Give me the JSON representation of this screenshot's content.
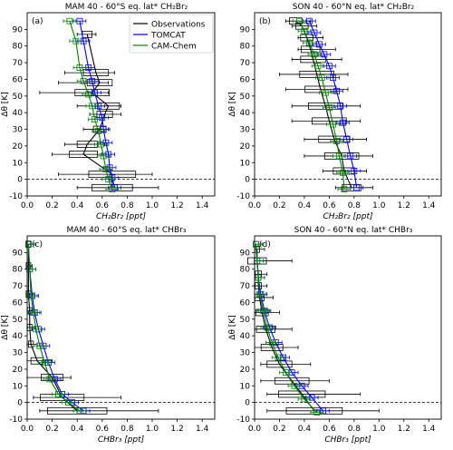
{
  "colors": {
    "observations": "#000000",
    "tomcat": "#0000ff",
    "camchem": "#008000"
  },
  "legend": [
    {
      "label": "Observations",
      "color": "#000000"
    },
    {
      "label": "TOMCAT",
      "color": "#0000ff"
    },
    {
      "label": "CAM-Chem",
      "color": "#008000"
    }
  ],
  "chart_data": [
    {
      "type": "line",
      "panel": "(a)",
      "title": "MAM 40 - 60°S eq. lat* CH₂Br₂",
      "xlabel": "CH₂Br₂ [ppt]",
      "ylabel": "Δθ [K]",
      "xlim": [
        0,
        1.5
      ],
      "ylim": [
        -10,
        100
      ],
      "xticks": [
        "0.0",
        "0.2",
        "0.4",
        "0.6",
        "0.8",
        "1.0",
        "1.2",
        "1.4"
      ],
      "yticks": [
        "-10",
        "0",
        "10",
        "20",
        "30",
        "40",
        "50",
        "60",
        "70",
        "80",
        "90"
      ],
      "legend": true,
      "series": [
        {
          "name": "Observations",
          "x": [
            0.68,
            0.68,
            0.45,
            0.48,
            0.58,
            0.62,
            0.65,
            0.52,
            0.58,
            0.55,
            0.48
          ],
          "y": [
            -5,
            3,
            15,
            21,
            30,
            39,
            44,
            52,
            58,
            64,
            87
          ],
          "whisker": [
            [
              0.4,
              1.05
            ],
            [
              0.25,
              1.0
            ],
            [
              0.2,
              0.65
            ],
            [
              0.3,
              0.62
            ],
            [
              0.45,
              0.65
            ],
            [
              0.5,
              0.75
            ],
            [
              0.4,
              0.75
            ],
            [
              0.1,
              0.65
            ],
            [
              0.25,
              0.65
            ],
            [
              0.3,
              0.7
            ],
            [
              0.4,
              0.55
            ]
          ]
        },
        {
          "name": "TOMCAT",
          "x": [
            0.7,
            0.68,
            0.66,
            0.65,
            0.63,
            0.61,
            0.6,
            0.57,
            0.54,
            0.52,
            0.49,
            0.45,
            0.42
          ],
          "y": [
            -5,
            1,
            7,
            15,
            22,
            30,
            37,
            44,
            52,
            59,
            67,
            83,
            95
          ]
        },
        {
          "name": "CAM-Chem",
          "x": [
            0.68,
            0.65,
            0.63,
            0.61,
            0.59,
            0.57,
            0.54,
            0.52,
            0.49,
            0.45,
            0.42,
            0.39,
            0.34
          ],
          "y": [
            -6,
            0,
            6,
            14,
            21,
            29,
            36,
            44,
            51,
            59,
            67,
            83,
            95
          ]
        }
      ]
    },
    {
      "type": "line",
      "panel": "(b)",
      "title": "SON 40 - 60°N eq. lat* CH₂Br₂",
      "xlabel": "CH₂Br₂ [ppt]",
      "ylabel": "Δθ [K]",
      "xlim": [
        0,
        1.5
      ],
      "ylim": [
        -10,
        100
      ],
      "xticks": [
        "0.0",
        "0.2",
        "0.4",
        "0.6",
        "0.8",
        "1.0",
        "1.2",
        "1.4"
      ],
      "yticks": [
        "-10",
        "0",
        "10",
        "20",
        "30",
        "40",
        "50",
        "60",
        "70",
        "80",
        "90"
      ],
      "legend": false,
      "series": [
        {
          "name": "Observations",
          "x": [
            0.78,
            0.72,
            0.7,
            0.64,
            0.6,
            0.57,
            0.53,
            0.5,
            0.47,
            0.45,
            0.42,
            0.38,
            0.33
          ],
          "y": [
            -5,
            5,
            14,
            24,
            35,
            44,
            54,
            63,
            72,
            78,
            85,
            92,
            95
          ],
          "whisker": [
            [
              0.65,
              0.95
            ],
            [
              0.55,
              0.9
            ],
            [
              0.4,
              0.95
            ],
            [
              0.4,
              0.9
            ],
            [
              0.3,
              0.85
            ],
            [
              0.3,
              0.85
            ],
            [
              0.25,
              0.75
            ],
            [
              0.2,
              0.75
            ],
            [
              0.3,
              0.7
            ],
            [
              0.35,
              0.65
            ],
            [
              0.35,
              0.55
            ],
            [
              0.3,
              0.5
            ],
            [
              0.25,
              0.45
            ]
          ]
        },
        {
          "name": "TOMCAT",
          "x": [
            0.82,
            0.8,
            0.77,
            0.74,
            0.71,
            0.69,
            0.66,
            0.63,
            0.6,
            0.56,
            0.52,
            0.48,
            0.44
          ],
          "y": [
            -5,
            5,
            14,
            24,
            34,
            44,
            53,
            61,
            68,
            75,
            81,
            88,
            95
          ]
        },
        {
          "name": "CAM-Chem",
          "x": [
            0.72,
            0.71,
            0.68,
            0.66,
            0.63,
            0.6,
            0.57,
            0.54,
            0.51,
            0.48,
            0.44,
            0.4,
            0.36
          ],
          "y": [
            -6,
            4,
            14,
            23,
            33,
            43,
            52,
            61,
            68,
            75,
            82,
            89,
            95
          ]
        }
      ]
    },
    {
      "type": "line",
      "panel": "(c)",
      "title": "MAM 40 - 60°S eq. lat* CHBr₃",
      "xlabel": "CHBr₃ [ppt]",
      "ylabel": "Δθ [K]",
      "xlim": [
        0,
        1.5
      ],
      "ylim": [
        -10,
        100
      ],
      "xticks": [
        "0.0",
        "0.2",
        "0.4",
        "0.6",
        "0.8",
        "1.0",
        "1.2",
        "1.4"
      ],
      "yticks": [
        "-10",
        "0",
        "10",
        "20",
        "30",
        "40",
        "50",
        "60",
        "70",
        "80",
        "90"
      ],
      "legend": false,
      "series": [
        {
          "name": "Observations",
          "x": [
            0.4,
            0.28,
            0.2,
            0.08,
            0.03,
            0.02,
            0.02,
            0.01,
            0.01,
            0.01
          ],
          "y": [
            -5,
            3,
            15,
            25,
            35,
            45,
            55,
            65,
            82,
            95
          ],
          "whisker": [
            [
              0.1,
              1.05
            ],
            [
              0.05,
              0.75
            ],
            [
              0.0,
              0.35
            ],
            [
              0.0,
              0.2
            ],
            [
              0.0,
              0.08
            ],
            [
              0.0,
              0.06
            ],
            [
              0.0,
              0.05
            ],
            [
              0.0,
              0.05
            ],
            [
              0.0,
              0.04
            ],
            [
              0.0,
              0.03
            ]
          ]
        },
        {
          "name": "TOMCAT",
          "x": [
            0.45,
            0.36,
            0.28,
            0.22,
            0.17,
            0.13,
            0.09,
            0.06,
            0.04,
            0.02,
            0.01
          ],
          "y": [
            -5,
            0,
            5,
            14,
            24,
            34,
            44,
            54,
            64,
            80,
            95
          ]
        },
        {
          "name": "CAM-Chem",
          "x": [
            0.42,
            0.33,
            0.25,
            0.18,
            0.14,
            0.1,
            0.07,
            0.05,
            0.03,
            0.02,
            0.01
          ],
          "y": [
            -5,
            0,
            5,
            14,
            24,
            34,
            44,
            54,
            64,
            80,
            95
          ]
        }
      ]
    },
    {
      "type": "line",
      "panel": "(d)",
      "title": "SON 40 - 60°N eq. lat* CHBr₃",
      "xlabel": "CHBr₃ [ppt]",
      "ylabel": "Δθ [K]",
      "xlim": [
        0,
        1.5
      ],
      "ylim": [
        -10,
        100
      ],
      "xticks": [
        "0.0",
        "0.2",
        "0.4",
        "0.6",
        "0.8",
        "1.0",
        "1.2",
        "1.4"
      ],
      "yticks": [
        "-10",
        "0",
        "10",
        "20",
        "30",
        "40",
        "50",
        "60",
        "70",
        "80",
        "90"
      ],
      "legend": false,
      "series": [
        {
          "name": "Observations",
          "x": [
            0.48,
            0.38,
            0.3,
            0.2,
            0.14,
            0.09,
            0.06,
            0.04,
            0.03,
            0.03,
            0.02,
            0.02
          ],
          "y": [
            -5,
            5,
            13,
            23,
            33,
            44,
            54,
            63,
            70,
            77,
            85,
            92
          ],
          "whisker": [
            [
              0.1,
              1.0
            ],
            [
              0.1,
              0.85
            ],
            [
              0.05,
              0.6
            ],
            [
              0.05,
              0.45
            ],
            [
              0.0,
              0.35
            ],
            [
              0.0,
              0.3
            ],
            [
              0.0,
              0.2
            ],
            [
              0.0,
              0.15
            ],
            [
              0.0,
              0.1
            ],
            [
              0.0,
              0.1
            ],
            [
              0.0,
              0.3
            ],
            [
              0.0,
              0.08
            ]
          ]
        },
        {
          "name": "TOMCAT",
          "x": [
            0.55,
            0.46,
            0.38,
            0.3,
            0.23,
            0.17,
            0.12,
            0.08,
            0.05,
            0.03,
            0.02,
            0.01
          ],
          "y": [
            -5,
            3,
            10,
            18,
            27,
            36,
            45,
            55,
            65,
            75,
            85,
            95
          ]
        },
        {
          "name": "CAM-Chem",
          "x": [
            0.5,
            0.4,
            0.32,
            0.25,
            0.19,
            0.14,
            0.1,
            0.07,
            0.04,
            0.03,
            0.02,
            0.01
          ],
          "y": [
            -6,
            2,
            10,
            18,
            27,
            36,
            45,
            55,
            65,
            75,
            85,
            95
          ]
        }
      ]
    }
  ]
}
